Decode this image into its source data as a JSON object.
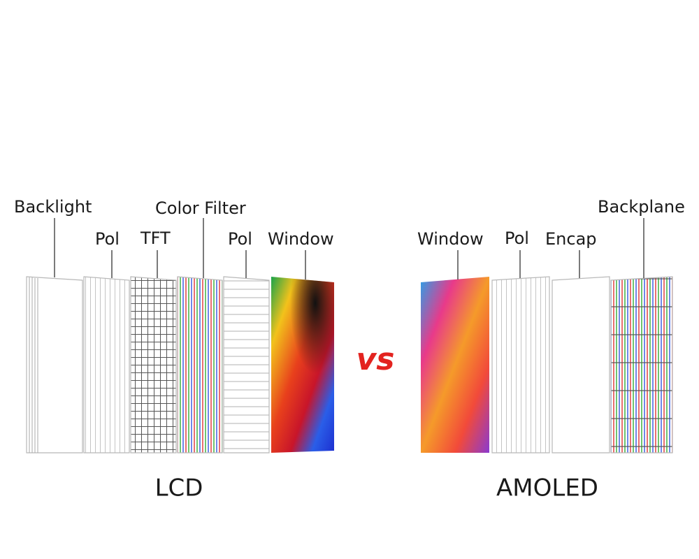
{
  "lcd": {
    "label": "LCD",
    "layers": [
      "Backlight",
      "Pol",
      "TFT",
      "Color Filter",
      "Pol",
      "Window"
    ]
  },
  "vs": "vs",
  "amoled": {
    "label": "AMOLED",
    "layers": [
      "Window",
      "Pol",
      "Encap",
      "Backplane"
    ]
  }
}
